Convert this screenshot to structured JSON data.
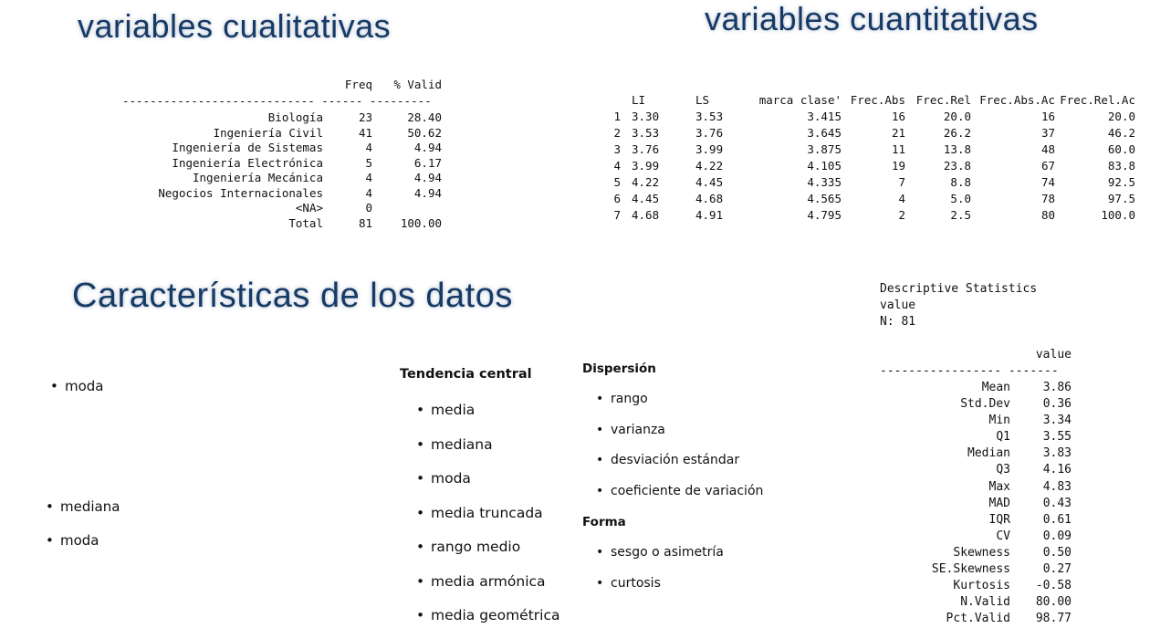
{
  "headings": {
    "cualitativas": "variables cualitativas",
    "cuantitativas": "variables cuantitativas",
    "caracteristicas": "Características de los datos"
  },
  "freq_table": {
    "header_freq": "Freq",
    "header_valid": "% Valid",
    "separator": "---------------------------- ------ ---------",
    "rows": [
      {
        "label": "Biología",
        "freq": "23",
        "valid": "28.40"
      },
      {
        "label": "Ingeniería Civil",
        "freq": "41",
        "valid": "50.62"
      },
      {
        "label": "Ingeniería de Sistemas",
        "freq": "4",
        "valid": "4.94"
      },
      {
        "label": "Ingeniería Electrónica",
        "freq": "5",
        "valid": "6.17"
      },
      {
        "label": "Ingeniería Mecánica",
        "freq": "4",
        "valid": "4.94"
      },
      {
        "label": "Negocios Internacionales",
        "freq": "4",
        "valid": "4.94"
      },
      {
        "label": "<NA>",
        "freq": "0",
        "valid": ""
      },
      {
        "label": "Total",
        "freq": "81",
        "valid": "100.00"
      }
    ]
  },
  "class_table": {
    "headers": [
      "",
      "LI",
      "LS",
      "marca clase'",
      "Frec.Abs",
      "Frec.Rel",
      "Frec.Abs.Ac",
      "Frec.Rel.Ac"
    ],
    "rows": [
      [
        "1",
        "3.30",
        "3.53",
        "3.415",
        "16",
        "20.0",
        "16",
        "20.0"
      ],
      [
        "2",
        "3.53",
        "3.76",
        "3.645",
        "21",
        "26.2",
        "37",
        "46.2"
      ],
      [
        "3",
        "3.76",
        "3.99",
        "3.875",
        "11",
        "13.8",
        "48",
        "60.0"
      ],
      [
        "4",
        "3.99",
        "4.22",
        "4.105",
        "19",
        "23.8",
        "67",
        "83.8"
      ],
      [
        "5",
        "4.22",
        "4.45",
        "4.335",
        "7",
        "8.8",
        "74",
        "92.5"
      ],
      [
        "6",
        "4.45",
        "4.68",
        "4.565",
        "4",
        "5.0",
        "78",
        "97.5"
      ],
      [
        "7",
        "4.68",
        "4.91",
        "4.795",
        "2",
        "2.5",
        "80",
        "100.0"
      ]
    ]
  },
  "left_list_1": [
    "moda"
  ],
  "left_list_2": [
    "mediana",
    "moda"
  ],
  "tendencia": {
    "label": "Tendencia central",
    "items": [
      "media",
      "mediana",
      "moda",
      "media truncada",
      "rango medio",
      "media armónica",
      "media geométrica"
    ]
  },
  "dispersion": {
    "label": "Dispersión",
    "items": [
      "rango",
      "varianza",
      "desviación estándar",
      "coeficiente de variación"
    ]
  },
  "forma": {
    "label": "Forma",
    "items": [
      "sesgo o asimetría",
      "curtosis"
    ]
  },
  "descriptive": {
    "title": "Descriptive Statistics",
    "variable": "value",
    "n": "N: 81",
    "col_header": "value",
    "separator": "----------------- -------",
    "rows": [
      {
        "stat": "Mean",
        "value": "3.86"
      },
      {
        "stat": "Std.Dev",
        "value": "0.36"
      },
      {
        "stat": "Min",
        "value": "3.34"
      },
      {
        "stat": "Q1",
        "value": "3.55"
      },
      {
        "stat": "Median",
        "value": "3.83"
      },
      {
        "stat": "Q3",
        "value": "4.16"
      },
      {
        "stat": "Max",
        "value": "4.83"
      },
      {
        "stat": "MAD",
        "value": "0.43"
      },
      {
        "stat": "IQR",
        "value": "0.61"
      },
      {
        "stat": "CV",
        "value": "0.09"
      },
      {
        "stat": "Skewness",
        "value": "0.50"
      },
      {
        "stat": "SE.Skewness",
        "value": "0.27"
      },
      {
        "stat": "Kurtosis",
        "value": "-0.58"
      },
      {
        "stat": "N.Valid",
        "value": "80.00"
      },
      {
        "stat": "Pct.Valid",
        "value": "98.77"
      }
    ]
  }
}
